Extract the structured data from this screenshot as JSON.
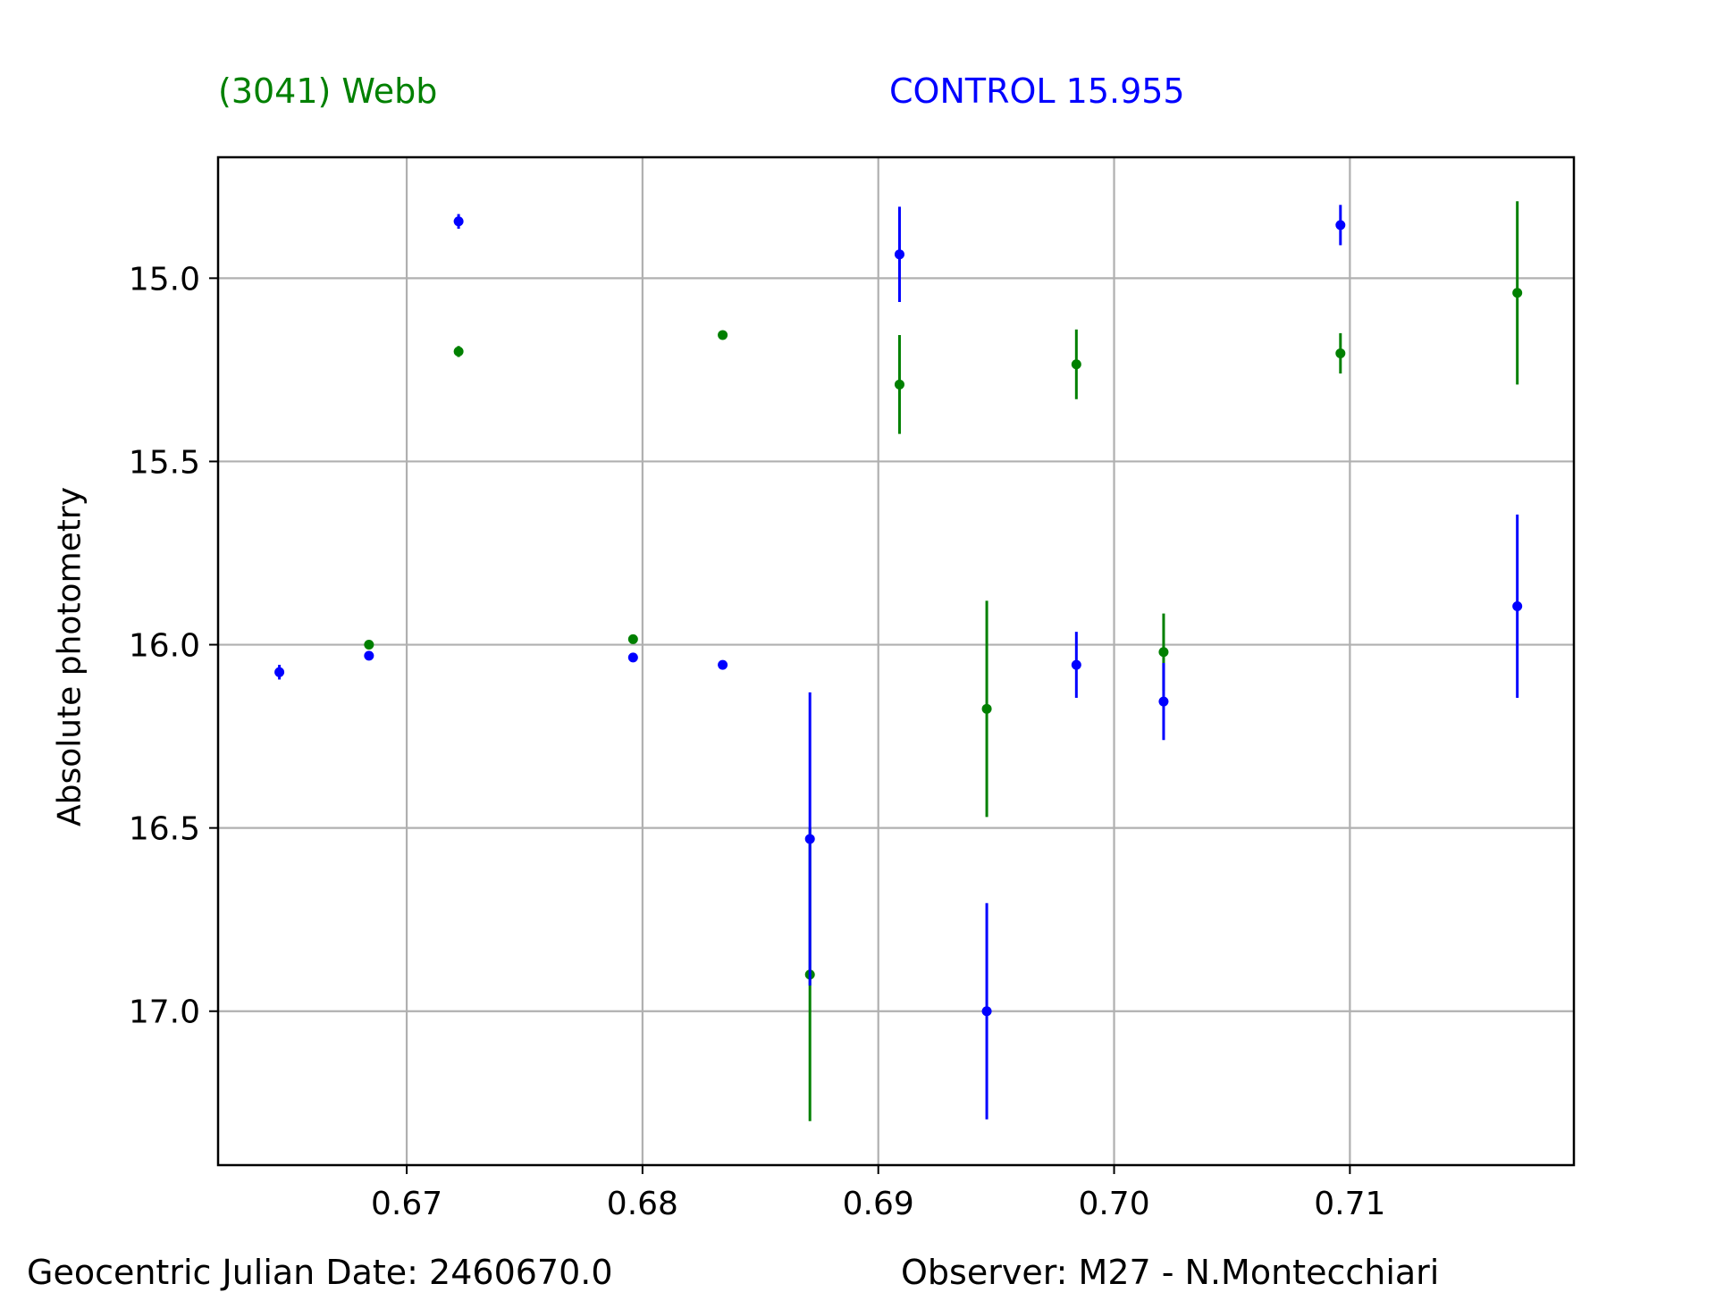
{
  "header": {
    "target_label": "(3041) Webb",
    "control_label": "CONTROL 15.955"
  },
  "footer": {
    "date_label": "Geocentric Julian Date: 2460670.0",
    "observer_label": "Observer: M27 - N.Montecchiari"
  },
  "colors": {
    "target": "#008000",
    "control": "#0000ff",
    "grid": "#b0b0b0",
    "axes": "#000000"
  },
  "chart_data": {
    "type": "scatter",
    "title": "",
    "xlabel": "",
    "ylabel": "Absolute photometry",
    "xlim": [
      0.662,
      0.7195
    ],
    "ylim": [
      17.42,
      14.67
    ],
    "y_inverted": true,
    "grid": true,
    "xticks": [
      0.67,
      0.68,
      0.69,
      0.7,
      0.71
    ],
    "xtick_labels": [
      "0.67",
      "0.68",
      "0.69",
      "0.70",
      "0.71"
    ],
    "yticks": [
      15.0,
      15.5,
      16.0,
      16.5,
      17.0
    ],
    "ytick_labels": [
      "15.0",
      "15.5",
      "16.0",
      "16.5",
      "17.0"
    ],
    "series": [
      {
        "name": "(3041) Webb",
        "color": "#008000",
        "x": [
          0.6684,
          0.6722,
          0.6796,
          0.6834,
          0.6871,
          0.6909,
          0.6946,
          0.6984,
          0.7021,
          0.7096,
          0.7171
        ],
        "y": [
          16.0,
          15.2,
          15.985,
          15.155,
          16.9,
          15.29,
          16.175,
          15.235,
          16.02,
          15.205,
          15.04
        ],
        "err": [
          0.0,
          0.015,
          0.0,
          0.0,
          0.4,
          0.135,
          0.295,
          0.095,
          0.105,
          0.055,
          0.25
        ]
      },
      {
        "name": "CONTROL 15.955",
        "color": "#0000ff",
        "x": [
          0.6646,
          0.6684,
          0.6722,
          0.6796,
          0.6834,
          0.6871,
          0.6909,
          0.6946,
          0.6984,
          0.7021,
          0.7096,
          0.7171
        ],
        "y": [
          16.075,
          16.03,
          14.845,
          16.035,
          16.055,
          16.53,
          14.935,
          17.0,
          16.055,
          16.155,
          14.855,
          15.895
        ],
        "err": [
          0.02,
          0.0,
          0.02,
          0.0,
          0.0,
          0.4,
          0.13,
          0.295,
          0.09,
          0.105,
          0.055,
          0.25
        ]
      }
    ]
  }
}
